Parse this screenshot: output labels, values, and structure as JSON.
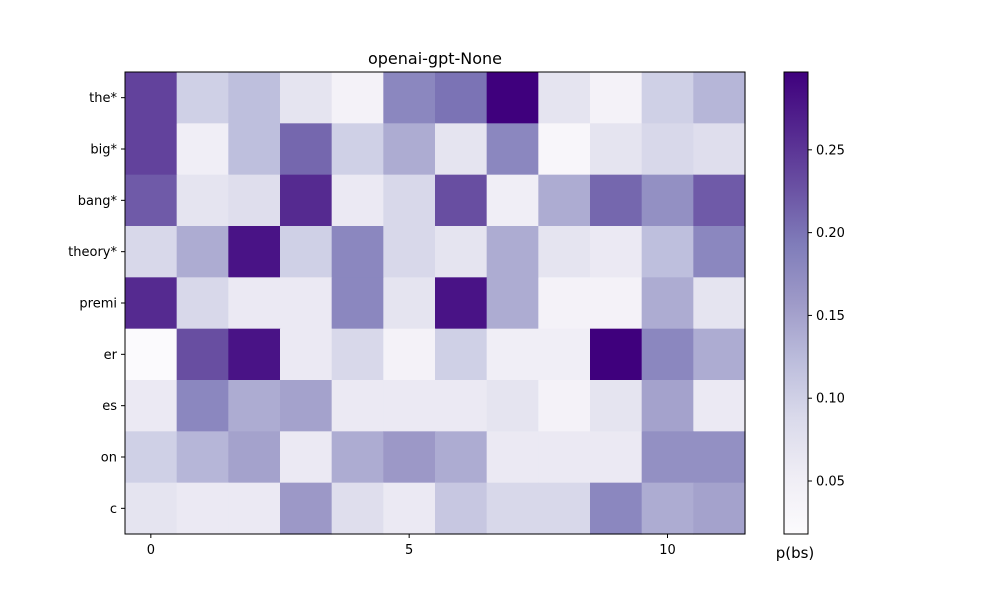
{
  "chart_data": {
    "type": "heatmap",
    "title": "openai-gpt-None",
    "rows": [
      "the*",
      "big*",
      "bang*",
      "theory*",
      "premi",
      "er",
      "es",
      "on",
      "c"
    ],
    "x_ticks": [
      0,
      5,
      10
    ],
    "x_tick_labels": [
      "0",
      "5",
      "10"
    ],
    "n_columns": 12,
    "colorscale": "Purples",
    "colorbar": {
      "label": "p(bs)",
      "range": [
        0.018,
        0.297
      ],
      "ticks": [
        0.05,
        0.1,
        0.15,
        0.2,
        0.25
      ],
      "tick_labels": [
        "0.05",
        "0.10",
        "0.15",
        "0.20",
        "0.25"
      ]
    },
    "values": [
      [
        0.24,
        0.1,
        0.12,
        0.07,
        0.04,
        0.18,
        0.2,
        0.297,
        0.07,
        0.04,
        0.1,
        0.13
      ],
      [
        0.24,
        0.05,
        0.12,
        0.21,
        0.1,
        0.14,
        0.07,
        0.18,
        0.03,
        0.07,
        0.09,
        0.08
      ],
      [
        0.22,
        0.07,
        0.08,
        0.26,
        0.06,
        0.09,
        0.23,
        0.05,
        0.14,
        0.21,
        0.17,
        0.22
      ],
      [
        0.09,
        0.14,
        0.28,
        0.1,
        0.18,
        0.09,
        0.07,
        0.14,
        0.07,
        0.06,
        0.12,
        0.18
      ],
      [
        0.26,
        0.09,
        0.06,
        0.06,
        0.18,
        0.07,
        0.28,
        0.14,
        0.04,
        0.04,
        0.14,
        0.07
      ],
      [
        0.02,
        0.23,
        0.28,
        0.06,
        0.09,
        0.04,
        0.1,
        0.05,
        0.05,
        0.297,
        0.18,
        0.14
      ],
      [
        0.06,
        0.18,
        0.14,
        0.15,
        0.06,
        0.06,
        0.06,
        0.07,
        0.04,
        0.07,
        0.15,
        0.06
      ],
      [
        0.1,
        0.13,
        0.15,
        0.06,
        0.14,
        0.16,
        0.14,
        0.06,
        0.06,
        0.06,
        0.17,
        0.17
      ],
      [
        0.07,
        0.06,
        0.06,
        0.16,
        0.08,
        0.06,
        0.11,
        0.09,
        0.09,
        0.18,
        0.14,
        0.15
      ]
    ]
  }
}
